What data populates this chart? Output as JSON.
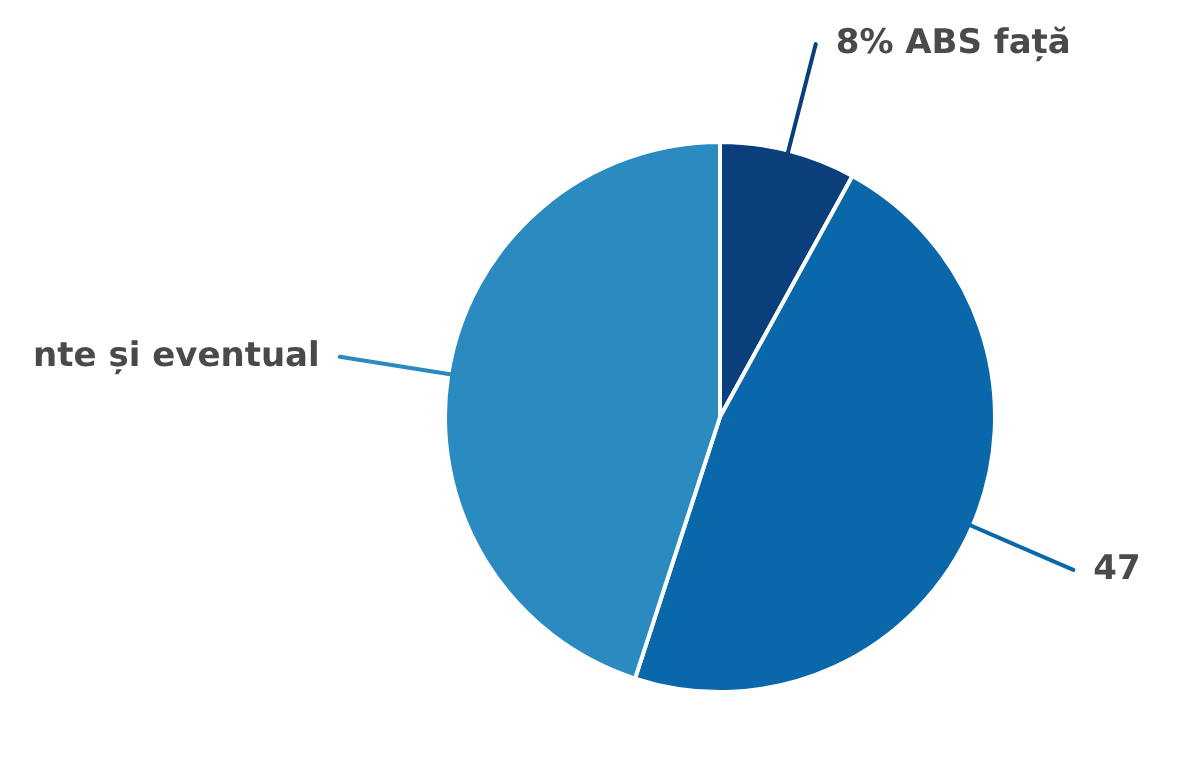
{
  "chart_data": {
    "type": "pie",
    "categories": [
      "8% ABS față",
      "47",
      "nte și eventual"
    ],
    "values": [
      8,
      47,
      45
    ],
    "colors": [
      "#0b3f7c",
      "#0a67a9",
      "#2b8abf"
    ],
    "legend": false
  }
}
